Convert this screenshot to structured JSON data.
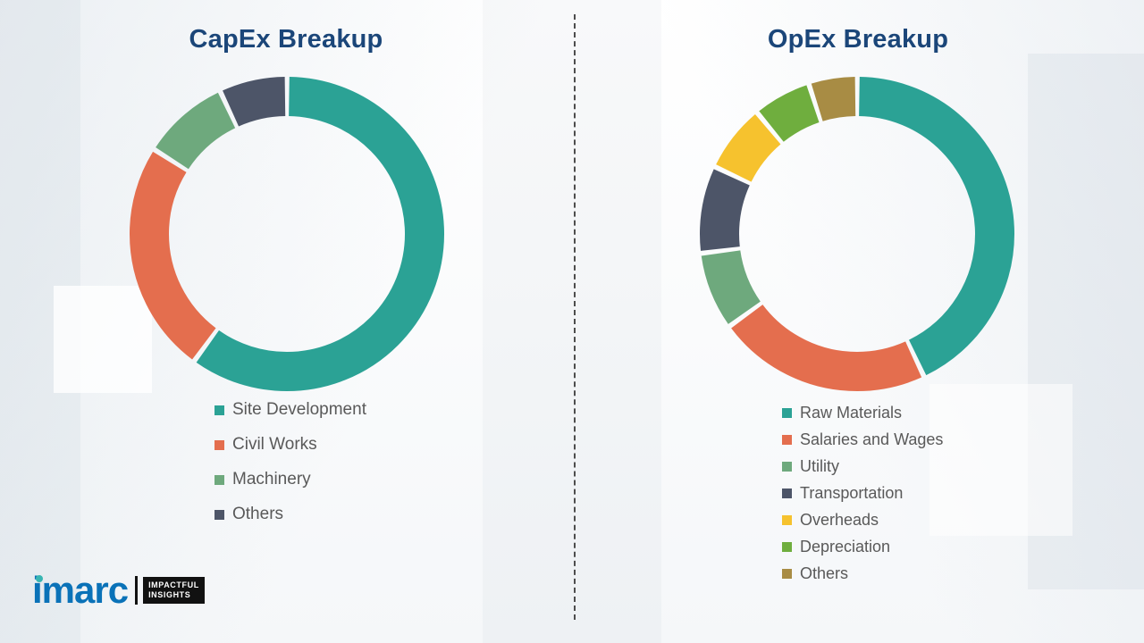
{
  "chart_data": [
    {
      "type": "pie",
      "style": "donut",
      "title": "CapEx Breakup",
      "title_color": "#1b4679",
      "legend_position": "bottom-left",
      "segments": [
        {
          "label": "Site Development",
          "value": 60,
          "color": "#2ba295"
        },
        {
          "label": "Civil Works",
          "value": 24,
          "color": "#e46e4e"
        },
        {
          "label": "Machinery",
          "value": 9,
          "color": "#6ea97d"
        },
        {
          "label": "Others",
          "value": 7,
          "color": "#4d5568"
        }
      ]
    },
    {
      "type": "pie",
      "style": "donut",
      "title": "OpEx Breakup",
      "title_color": "#1b4679",
      "legend_position": "bottom-left",
      "segments": [
        {
          "label": "Raw Materials",
          "value": 43,
          "color": "#2ba295"
        },
        {
          "label": "Salaries and Wages",
          "value": 22,
          "color": "#e46e4e"
        },
        {
          "label": "Utility",
          "value": 8,
          "color": "#6ea97d"
        },
        {
          "label": "Transportation",
          "value": 9,
          "color": "#4d5568"
        },
        {
          "label": "Overheads",
          "value": 7,
          "color": "#f6c22e"
        },
        {
          "label": "Depreciation",
          "value": 6,
          "color": "#6fae3e"
        },
        {
          "label": "Others",
          "value": 5,
          "color": "#a88c44"
        }
      ]
    }
  ],
  "logo": {
    "brand": "imarc",
    "tagline_line1": "IMPACTFUL",
    "tagline_line2": "INSIGHTS"
  }
}
